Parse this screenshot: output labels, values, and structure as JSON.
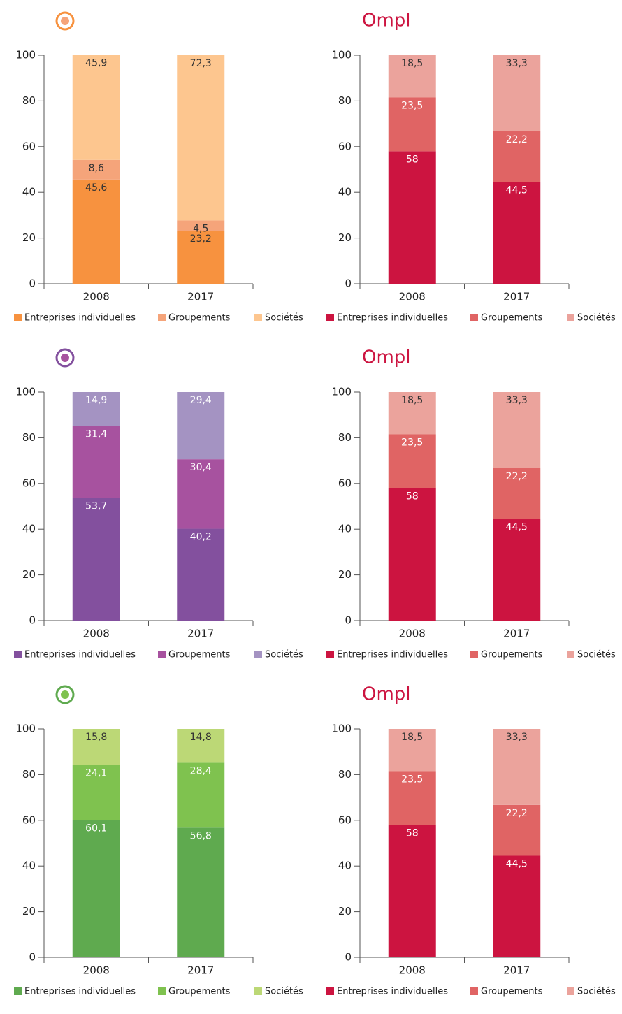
{
  "chart_data": [
    {
      "type": "bar",
      "stacked": true,
      "categories": [
        "2008",
        "2017"
      ],
      "ylim": [
        0,
        100
      ],
      "yticks": [
        0,
        20,
        40,
        60,
        80,
        100
      ],
      "series": [
        {
          "name": "Entreprises individuelles",
          "color": "#f7923f",
          "label_color": "#333333",
          "values": [
            45.6,
            23.2
          ],
          "value_labels": [
            "45,6",
            "23,2"
          ]
        },
        {
          "name": "Groupements",
          "color": "#f5a47a",
          "label_color": "#333333",
          "values": [
            8.6,
            4.5
          ],
          "value_labels": [
            "8,6",
            "4,5"
          ]
        },
        {
          "name": "Sociétés",
          "color": "#fdc68f",
          "label_color": "#333333",
          "values": [
            45.9,
            72.3
          ],
          "value_labels": [
            "45,9",
            "72,3"
          ]
        }
      ]
    },
    {
      "type": "bar",
      "stacked": true,
      "logo": "Ompl",
      "categories": [
        "2008",
        "2017"
      ],
      "ylim": [
        0,
        100
      ],
      "yticks": [
        0,
        20,
        40,
        60,
        80,
        100
      ],
      "series": [
        {
          "name": "Entreprises individuelles",
          "color": "#cc1440",
          "label_color": "#ffffff",
          "values": [
            58,
            44.5
          ],
          "value_labels": [
            "58",
            "44,5"
          ]
        },
        {
          "name": "Groupements",
          "color": "#e06464",
          "label_color": "#ffffff",
          "values": [
            23.5,
            22.2
          ],
          "value_labels": [
            "23,5",
            "22,2"
          ]
        },
        {
          "name": "Sociétés",
          "color": "#eba39c",
          "label_color": "#333333",
          "values": [
            18.5,
            33.3
          ],
          "value_labels": [
            "18,5",
            "33,3"
          ]
        }
      ]
    },
    {
      "type": "bar",
      "stacked": true,
      "categories": [
        "2008",
        "2017"
      ],
      "ylim": [
        0,
        100
      ],
      "yticks": [
        0,
        20,
        40,
        60,
        80,
        100
      ],
      "series": [
        {
          "name": "Entreprises individuelles",
          "color": "#83509e",
          "label_color": "#ffffff",
          "values": [
            53.7,
            40.2
          ],
          "value_labels": [
            "53,7",
            "40,2"
          ]
        },
        {
          "name": "Groupements",
          "color": "#a7529f",
          "label_color": "#ffffff",
          "values": [
            31.4,
            30.4
          ],
          "value_labels": [
            "31,4",
            "30,4"
          ]
        },
        {
          "name": "Sociétés",
          "color": "#a493c2",
          "label_color": "#ffffff",
          "values": [
            14.9,
            29.4
          ],
          "value_labels": [
            "14,9",
            "29,4"
          ]
        }
      ]
    },
    {
      "type": "bar",
      "stacked": true,
      "logo": "Ompl",
      "categories": [
        "2008",
        "2017"
      ],
      "ylim": [
        0,
        100
      ],
      "yticks": [
        0,
        20,
        40,
        60,
        80,
        100
      ],
      "series": [
        {
          "name": "Entreprises individuelles",
          "color": "#cc1440",
          "label_color": "#ffffff",
          "values": [
            58,
            44.5
          ],
          "value_labels": [
            "58",
            "44,5"
          ]
        },
        {
          "name": "Groupements",
          "color": "#e06464",
          "label_color": "#ffffff",
          "values": [
            23.5,
            22.2
          ],
          "value_labels": [
            "23,5",
            "22,2"
          ]
        },
        {
          "name": "Sociétés",
          "color": "#eba39c",
          "label_color": "#333333",
          "values": [
            18.5,
            33.3
          ],
          "value_labels": [
            "18,5",
            "33,3"
          ]
        }
      ]
    },
    {
      "type": "bar",
      "stacked": true,
      "categories": [
        "2008",
        "2017"
      ],
      "ylim": [
        0,
        100
      ],
      "yticks": [
        0,
        20,
        40,
        60,
        80,
        100
      ],
      "series": [
        {
          "name": "Entreprises individuelles",
          "color": "#5faa4f",
          "label_color": "#ffffff",
          "values": [
            60.1,
            56.8
          ],
          "value_labels": [
            "60,1",
            "56,8"
          ]
        },
        {
          "name": "Groupements",
          "color": "#7fc24f",
          "label_color": "#ffffff",
          "values": [
            24.1,
            28.4
          ],
          "value_labels": [
            "24,1",
            "28,4"
          ]
        },
        {
          "name": "Sociétés",
          "color": "#bcd876",
          "label_color": "#333333",
          "values": [
            15.8,
            14.8
          ],
          "value_labels": [
            "15,8",
            "14,8"
          ]
        }
      ]
    },
    {
      "type": "bar",
      "stacked": true,
      "logo": "Ompl",
      "categories": [
        "2008",
        "2017"
      ],
      "ylim": [
        0,
        100
      ],
      "yticks": [
        0,
        20,
        40,
        60,
        80,
        100
      ],
      "series": [
        {
          "name": "Entreprises individuelles",
          "color": "#cc1440",
          "label_color": "#ffffff",
          "values": [
            58,
            44.5
          ],
          "value_labels": [
            "58",
            "44,5"
          ]
        },
        {
          "name": "Groupements",
          "color": "#e06464",
          "label_color": "#ffffff",
          "values": [
            23.5,
            22.2
          ],
          "value_labels": [
            "23,5",
            "22,2"
          ]
        },
        {
          "name": "Sociétés",
          "color": "#eba39c",
          "label_color": "#333333",
          "values": [
            18.5,
            33.3
          ],
          "value_labels": [
            "18,5",
            "33,3"
          ]
        }
      ]
    }
  ]
}
